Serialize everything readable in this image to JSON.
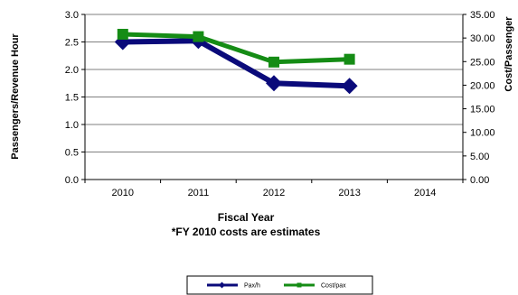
{
  "chart_data": {
    "type": "line",
    "categories": [
      "2010",
      "2011",
      "2012",
      "2013",
      "2014"
    ],
    "ylabel_left": "Passengers/Revenue Hour",
    "ylabel_right": "Cost/Passenger",
    "xlabel": "Fiscal Year",
    "note": "*FY 2010 costs are estimates",
    "ylim_left": [
      0,
      3.0
    ],
    "ylim_right": [
      0,
      35.0
    ],
    "yticks_left": [
      "0.0",
      "0.5",
      "1.0",
      "1.5",
      "2.0",
      "2.5",
      "3.0"
    ],
    "yticks_right": [
      "0.00",
      "5.00",
      "10.00",
      "15.00",
      "20.00",
      "25.00",
      "30.00",
      "35.00"
    ],
    "grid": "horizontal gridlines at left-axis ticks",
    "legend_position": "bottom",
    "series": [
      {
        "name": "Pax/h",
        "axis": "left",
        "color": "#0a0a7a",
        "marker": "diamond",
        "values": [
          2.5,
          2.52,
          1.75,
          1.7,
          null
        ]
      },
      {
        "name": "Cost/pax",
        "axis": "right",
        "color": "#158c15",
        "marker": "square",
        "values": [
          30.8,
          30.3,
          24.9,
          25.5,
          null
        ]
      }
    ]
  }
}
